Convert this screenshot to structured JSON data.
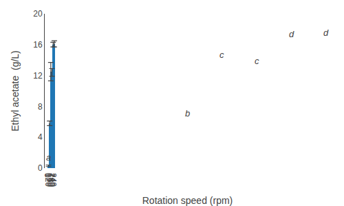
{
  "chart_data": {
    "type": "bar",
    "xlabel": "Rotation speed (rpm)",
    "ylabel": "Ethyl acetate  (g/L)",
    "categories": [
      "0",
      "120",
      "150",
      "180",
      "210",
      "240"
    ],
    "values": [
      0.3,
      5.8,
      12.5,
      12.4,
      16.0,
      16.1
    ],
    "errors": [
      0.1,
      0.3,
      1.2,
      0.5,
      0.3,
      0.4
    ],
    "annotations": [
      "a",
      "b",
      "c",
      "c",
      "d",
      "d"
    ],
    "ylim": [
      0,
      20
    ],
    "yticks": [
      0,
      4,
      8,
      12,
      16,
      20
    ],
    "grid": false
  }
}
